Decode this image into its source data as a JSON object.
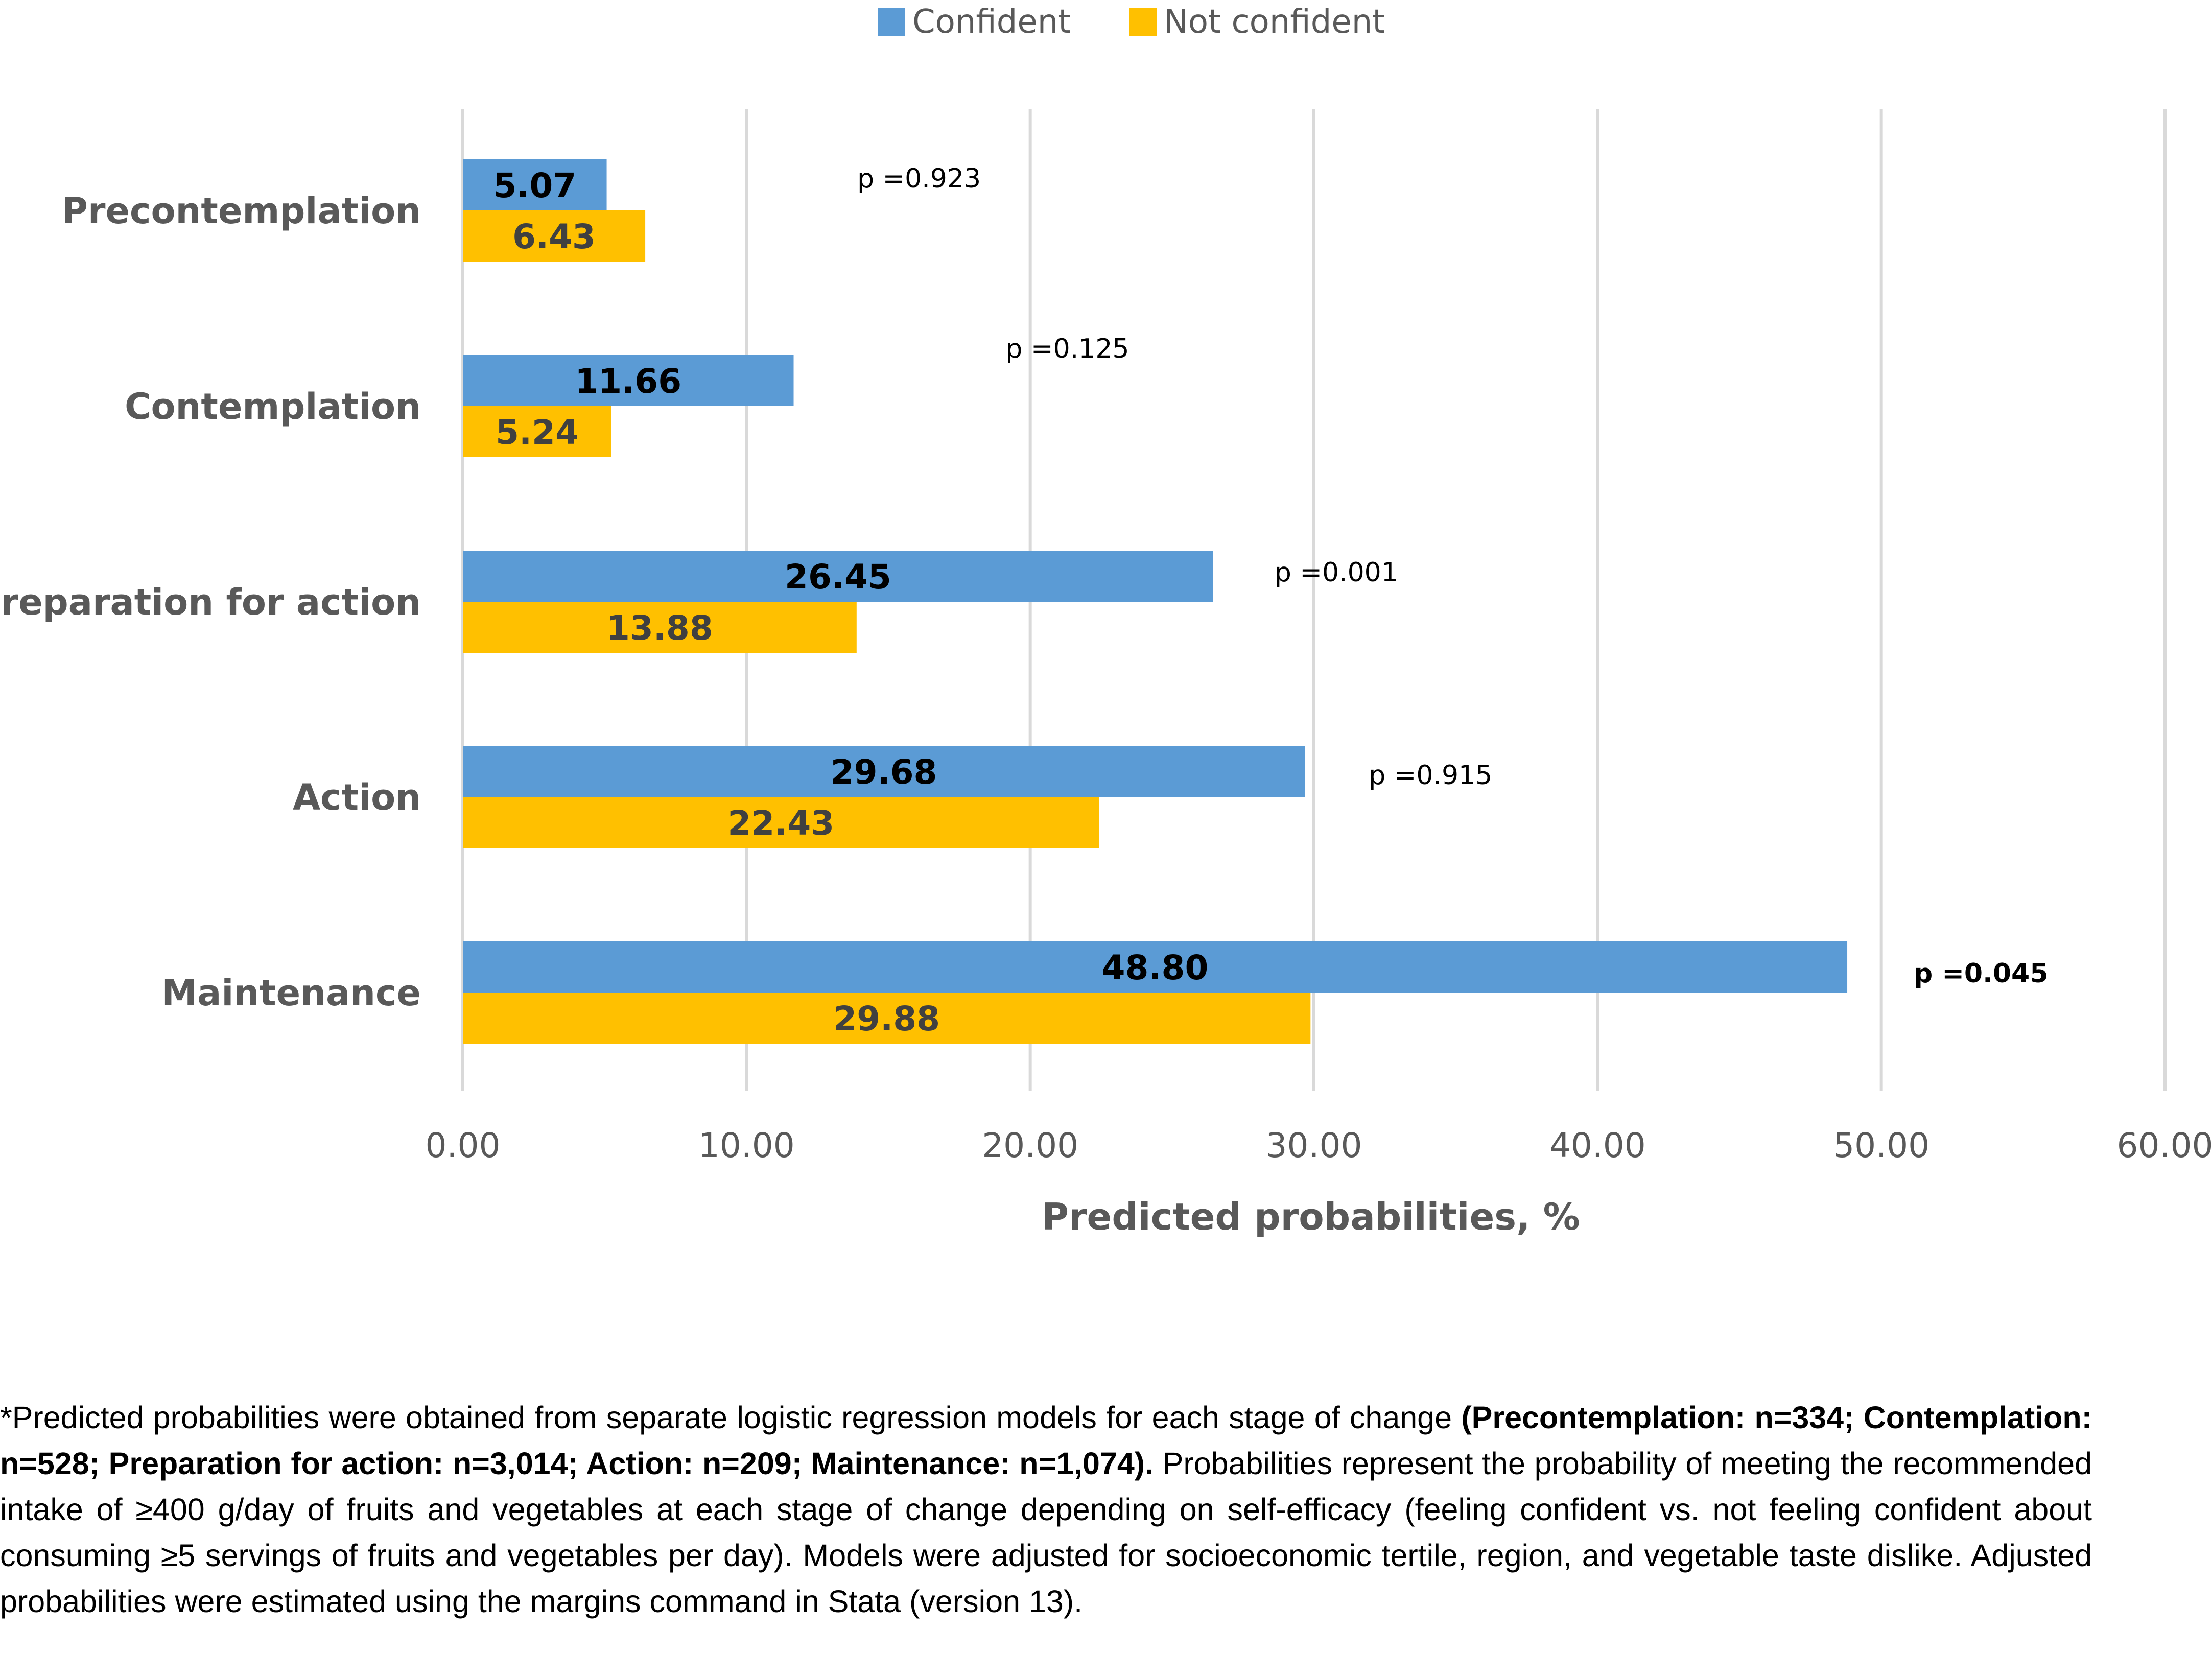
{
  "chart_data": {
    "type": "bar",
    "orientation": "horizontal",
    "categories": [
      "Precontemplation",
      "Contemplation",
      "Preparation for action",
      "Action",
      "Maintenance"
    ],
    "series": [
      {
        "name": "Confident",
        "color": "#5b9bd5",
        "values": [
          5.07,
          11.66,
          26.45,
          29.68,
          48.8
        ],
        "labels": [
          "5.07",
          "11.66",
          "26.45",
          "29.68",
          "48.80"
        ],
        "label_color": "#000000"
      },
      {
        "name": "Not confident",
        "color": "#ffc000",
        "values": [
          6.43,
          5.24,
          13.88,
          22.43,
          29.88
        ],
        "labels": [
          "6.43",
          "5.24",
          "13.88",
          "22.43",
          "29.88"
        ],
        "label_color": "#404040"
      }
    ],
    "p_values": [
      {
        "text": "p =0.923",
        "bold": false
      },
      {
        "text": "p =0.125",
        "bold": false
      },
      {
        "text": "p =0.001",
        "bold": false
      },
      {
        "text": "p =0.915",
        "bold": false
      },
      {
        "text": "p =0.045",
        "bold": true
      }
    ],
    "xlim": [
      0,
      60
    ],
    "xticks": [
      0,
      10,
      20,
      30,
      40,
      50,
      60
    ],
    "xtick_labels": [
      "0.00",
      "10.00",
      "20.00",
      "30.00",
      "40.00",
      "50.00",
      "60.00"
    ],
    "xlabel": "Predicted probabilities, %",
    "ylabel": "",
    "grid": true,
    "legend_position": "top-center"
  },
  "footnote": {
    "intro": "*Predicted probabilities were obtained from separate logistic regression models for each stage of change ",
    "sample_sizes": "(Precontemplation: n=334; Contemplation: n=528; Preparation for action: n=3,014; Action: n=209; Maintenance: n=1,074).",
    "rest": " Probabilities represent the probability of meeting the recommended intake of ≥400 g/day of fruits and vegetables at each stage of change depending on self-efficacy (feeling confident vs. not feeling confident about consuming ≥5 servings of fruits and vegetables per day). Models were adjusted for socioeconomic tertile, region, and vegetable taste dislike. Adjusted probabilities were estimated using the margins command in Stata (version 13)."
  }
}
